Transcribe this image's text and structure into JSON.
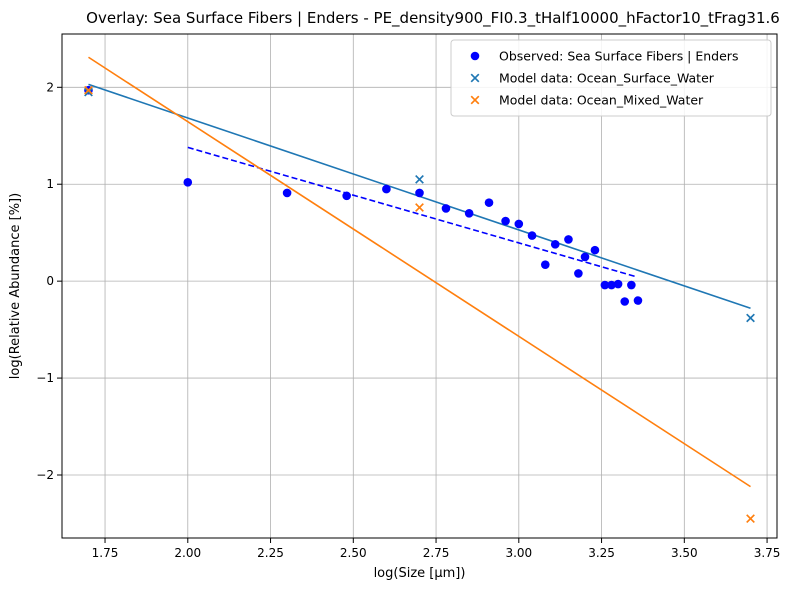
{
  "chart_data": {
    "type": "scatter",
    "title": "Overlay: Sea Surface Fibers | Enders - PE_density900_FI0.3_tHalf10000_hFactor10_tFrag31.6",
    "xlabel": "log(Size [µm])",
    "ylabel": "log(Relative Abundance [%])",
    "xlim": [
      1.62,
      3.78
    ],
    "ylim": [
      -2.65,
      2.55
    ],
    "xticks": [
      1.75,
      2.0,
      2.25,
      2.5,
      2.75,
      3.0,
      3.25,
      3.5,
      3.75
    ],
    "xtick_labels": [
      "1.75",
      "2.00",
      "2.25",
      "2.50",
      "2.75",
      "3.00",
      "3.25",
      "3.50",
      "3.75"
    ],
    "yticks": [
      -2,
      -1,
      0,
      1,
      2
    ],
    "ytick_labels": [
      "−2",
      "−1",
      "0",
      "1",
      "2"
    ],
    "grid": true,
    "legend_position": "top-right",
    "series": [
      {
        "name": "Observed: Sea Surface Fibers | Enders",
        "kind": "scatter-circle",
        "color": "#0000ff",
        "x": [
          1.7,
          2.0,
          2.3,
          2.48,
          2.6,
          2.7,
          2.78,
          2.85,
          2.91,
          2.96,
          3.0,
          3.04,
          3.08,
          3.11,
          3.15,
          3.18,
          3.2,
          3.23,
          3.26,
          3.28,
          3.3,
          3.32,
          3.34,
          3.36
        ],
        "y": [
          1.97,
          1.02,
          0.91,
          0.88,
          0.95,
          0.91,
          0.75,
          0.7,
          0.81,
          0.62,
          0.59,
          0.47,
          0.17,
          0.38,
          0.43,
          0.08,
          0.25,
          0.32,
          -0.04,
          -0.04,
          -0.03,
          -0.21,
          -0.04,
          -0.2
        ]
      },
      {
        "name": "",
        "kind": "fit-dashed",
        "color": "#0000ff",
        "x": [
          2.0,
          3.35
        ],
        "y": [
          1.38,
          0.05
        ]
      },
      {
        "name": "Model data: Ocean_Surface_Water",
        "kind": "scatter-x",
        "color": "#1f77b4",
        "x": [
          1.7,
          2.7,
          3.7
        ],
        "y": [
          1.95,
          1.05,
          -0.38
        ]
      },
      {
        "name": "",
        "kind": "line",
        "color": "#1f77b4",
        "x": [
          1.7,
          3.7
        ],
        "y": [
          2.03,
          -0.28
        ]
      },
      {
        "name": "Model data: Ocean_Mixed_Water",
        "kind": "scatter-x",
        "color": "#ff7f0e",
        "x": [
          1.7,
          2.7,
          3.7
        ],
        "y": [
          1.97,
          0.76,
          -2.45
        ]
      },
      {
        "name": "",
        "kind": "line",
        "color": "#ff7f0e",
        "x": [
          1.7,
          3.7
        ],
        "y": [
          2.31,
          -2.12
        ]
      }
    ]
  }
}
